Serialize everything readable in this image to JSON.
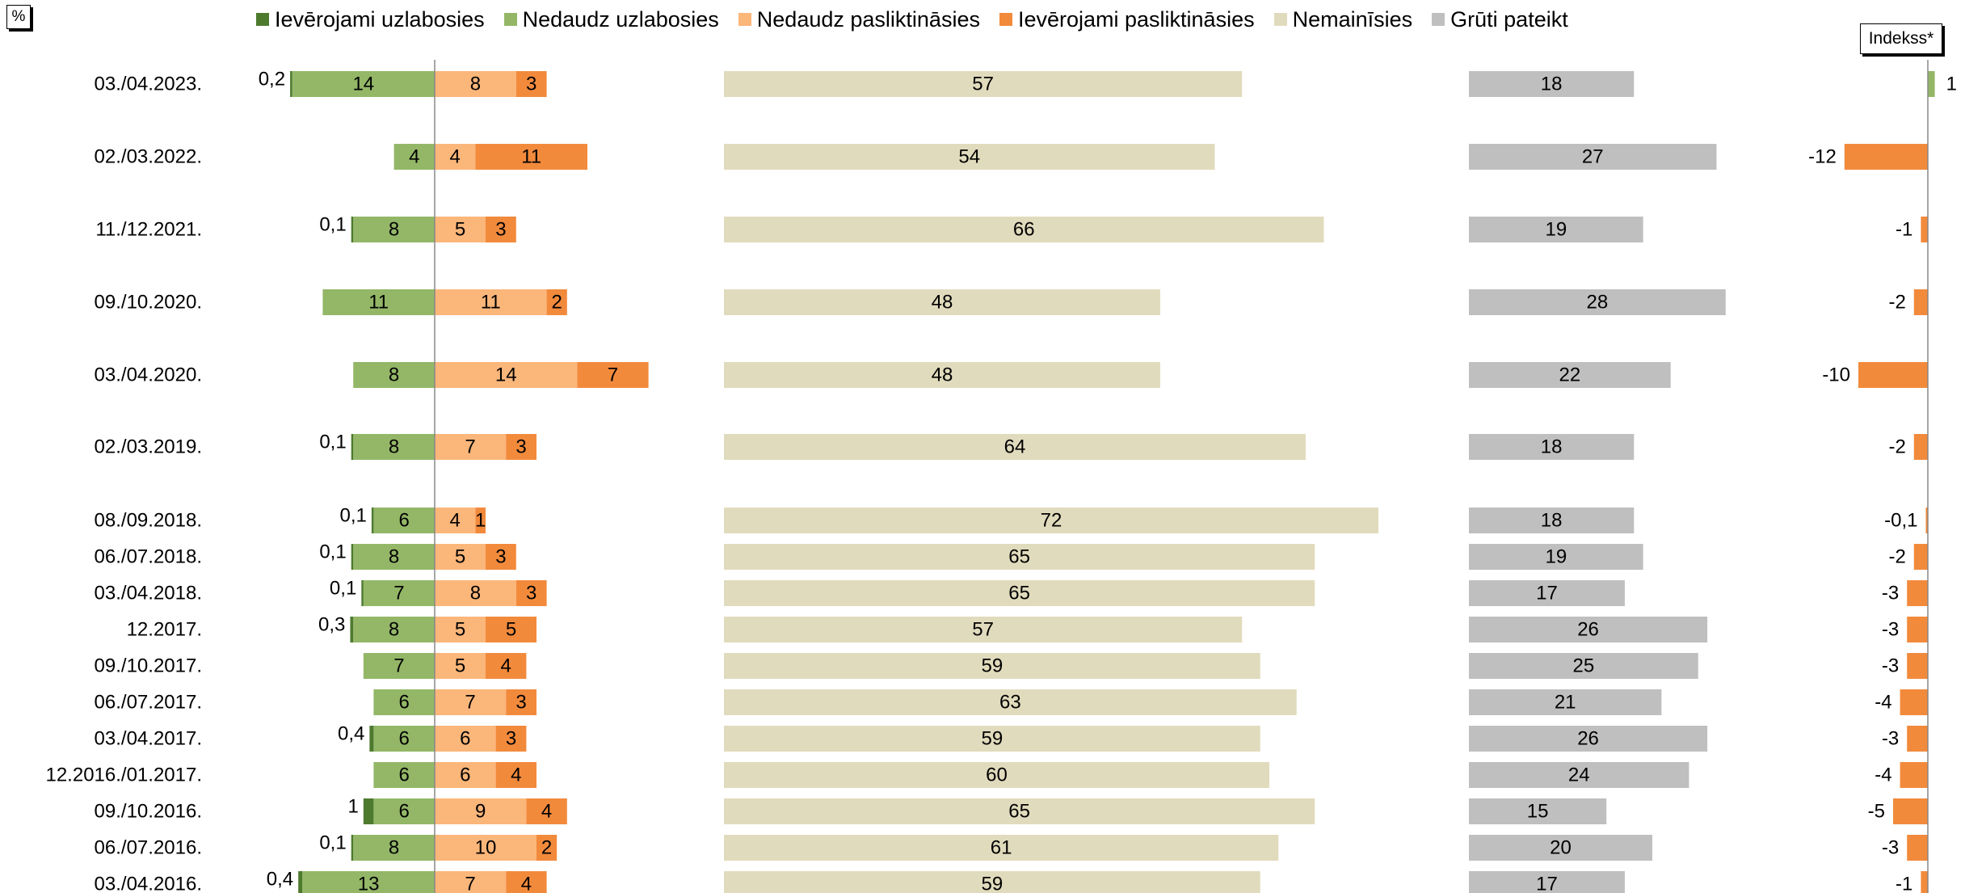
{
  "unit_label": "%",
  "index_label": "Indekss*",
  "legend": [
    {
      "label": "Ievērojami uzlabosies",
      "color": "#4e7a2e"
    },
    {
      "label": "Nedaudz uzlabosies",
      "color": "#93b767"
    },
    {
      "label": "Nedaudz pasliktināsies",
      "color": "#fbb67a"
    },
    {
      "label": "Ievērojami pasliktināsies",
      "color": "#f28a3c"
    },
    {
      "label": "Nemainīsies",
      "color": "#e1dbbd"
    },
    {
      "label": "Grūti pateikt",
      "color": "#bfbfbf"
    }
  ],
  "chart_data": {
    "type": "bar",
    "orientation": "horizontal",
    "stacked": "diverging",
    "categories": [
      "03./04.2023.",
      "02./03.2022.",
      "11./12.2021.",
      "09./10.2020.",
      "03./04.2020.",
      "02./03.2019.",
      "08./09.2018.",
      "06./07.2018.",
      "03./04.2018.",
      "12.2017.",
      "09./10.2017.",
      "06./07.2017.",
      "03./04.2017.",
      "12.2016./01.2017.",
      "09./10.2016.",
      "06./07.2016.",
      "03./04.2016."
    ],
    "series": [
      {
        "name": "Ievērojami uzlabosies",
        "values": [
          0.2,
          0,
          0.1,
          0,
          0,
          0.1,
          0.1,
          0.1,
          0.1,
          0.3,
          0,
          0,
          0.4,
          0,
          1,
          0.1,
          0.4
        ],
        "labels": [
          "0,2",
          "",
          "0,1",
          "",
          "",
          "0,1",
          "0,1",
          "0,1",
          "0,1",
          "0,3",
          "",
          "",
          "0,4",
          "",
          "1",
          "0,1",
          "0,4"
        ]
      },
      {
        "name": "Nedaudz uzlabosies",
        "values": [
          14,
          4,
          8,
          11,
          8,
          8,
          6,
          8,
          7,
          8,
          7,
          6,
          6,
          6,
          6,
          8,
          13
        ]
      },
      {
        "name": "Nedaudz pasliktināsies",
        "values": [
          8,
          4,
          5,
          11,
          14,
          7,
          4,
          5,
          8,
          5,
          5,
          7,
          6,
          6,
          9,
          10,
          7
        ]
      },
      {
        "name": "Ievērojami pasliktināsies",
        "values": [
          3,
          11,
          3,
          2,
          7,
          3,
          1,
          3,
          3,
          5,
          4,
          3,
          3,
          4,
          4,
          2,
          4
        ]
      },
      {
        "name": "Nemainīsies",
        "values": [
          57,
          54,
          66,
          48,
          48,
          64,
          72,
          65,
          65,
          57,
          59,
          63,
          59,
          60,
          65,
          61,
          59
        ]
      },
      {
        "name": "Grūti pateikt",
        "values": [
          18,
          27,
          19,
          28,
          22,
          18,
          18,
          19,
          17,
          26,
          25,
          21,
          26,
          24,
          15,
          20,
          17
        ]
      },
      {
        "name": "Indekss*",
        "values": [
          1,
          -12,
          -1,
          -2,
          -10,
          -2,
          -0.1,
          -2,
          -3,
          -3,
          -3,
          -4,
          -3,
          -4,
          -5,
          -3,
          -1
        ],
        "labels": [
          "1",
          "-12",
          "-1",
          "-2",
          "-10",
          "-2",
          "-0,1",
          "-2",
          "-3",
          "-3",
          "-3",
          "-4",
          "-3",
          "-4",
          "-5",
          "-3",
          "-1"
        ]
      }
    ]
  }
}
